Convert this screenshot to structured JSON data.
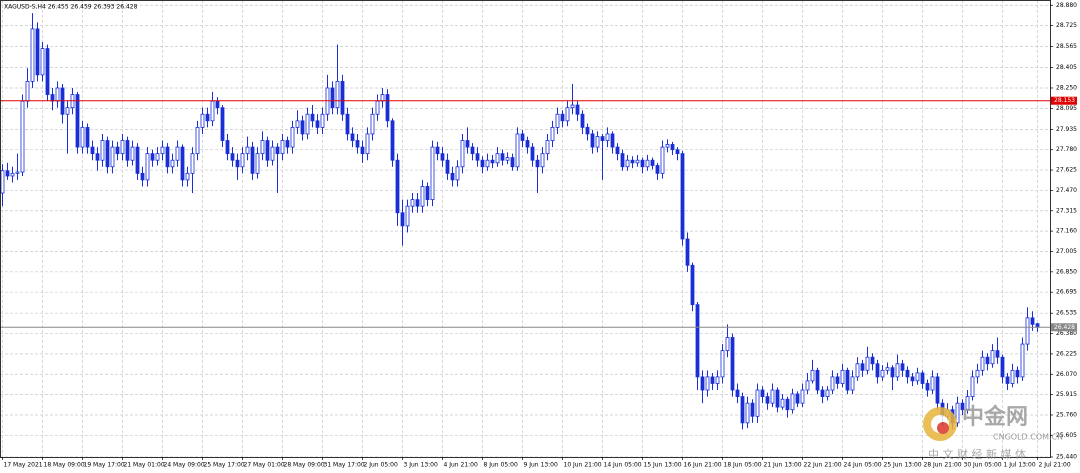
{
  "chart_data": {
    "type": "candlestick",
    "header": "XAGUSD-S,H4 26.455 26.459 26.393 26.428",
    "color": "#1a2fd6",
    "grid": true,
    "ylim": [
      25.44,
      28.92
    ],
    "xlim": [
      -0.5,
      209.5
    ],
    "yticks": [
      {
        "value": 28.88,
        "label": "28.880"
      },
      28.725,
      28.565,
      28.405,
      {
        "value": 28.25,
        "label": "28.250"
      },
      28.095,
      27.935,
      {
        "value": 27.78,
        "label": "27.780"
      },
      27.625,
      {
        "value": 27.47,
        "label": "27.470"
      },
      27.315,
      {
        "value": 27.16,
        "label": "27.160"
      },
      27.005,
      {
        "value": 26.85,
        "label": "26.850"
      },
      26.695,
      26.535,
      {
        "value": 26.38,
        "label": "26.380"
      },
      26.225,
      {
        "value": 26.07,
        "label": "26.070"
      },
      25.915,
      {
        "value": 25.76,
        "label": "25.760"
      },
      25.605,
      {
        "value": 25.44,
        "label": "25.440"
      }
    ],
    "xticks": [
      {
        "value": 0,
        "label": "17 May 2021"
      },
      {
        "value": 8,
        "label": "18 May 09:00"
      },
      {
        "value": 16,
        "label": "19 May 17:00"
      },
      {
        "value": 24,
        "label": "21 May 01:00"
      },
      {
        "value": 32,
        "label": "24 May 09:00"
      },
      {
        "value": 40,
        "label": "25 May 17:00"
      },
      {
        "value": 48,
        "label": "27 May 01:00"
      },
      {
        "value": 56,
        "label": "28 May 09:00"
      },
      {
        "value": 64,
        "label": "31 May 17:00"
      },
      {
        "value": 72,
        "label": "2 Jun 05:00"
      },
      {
        "value": 80,
        "label": "3 Jun 13:00"
      },
      {
        "value": 88,
        "label": "4 Jun 21:00"
      },
      {
        "value": 96,
        "label": "8 Jun 05:00"
      },
      {
        "value": 104,
        "label": "9 Jun 13:00"
      },
      {
        "value": 112,
        "label": "10 Jun 21:00"
      },
      {
        "value": 120,
        "label": "14 Jun 05:00"
      },
      {
        "value": 128,
        "label": "15 Jun 13:00"
      },
      {
        "value": 136,
        "label": "16 Jun 21:00"
      },
      {
        "value": 144,
        "label": "18 Jun 05:00"
      },
      {
        "value": 152,
        "label": "21 Jun 13:00"
      },
      {
        "value": 160,
        "label": "22 Jun 21:00"
      },
      {
        "value": 168,
        "label": "24 Jun 05:00"
      },
      {
        "value": 176,
        "label": "25 Jun 13:00"
      },
      {
        "value": 184,
        "label": "28 Jun 21:00"
      },
      {
        "value": 192,
        "label": "30 Jun 05:00"
      },
      {
        "value": 200,
        "label": "1 Jul 13:00"
      },
      {
        "value": 207,
        "label": "2 Jul 21:00"
      }
    ],
    "hlines": [
      {
        "value": 28.153,
        "color": "#e00000"
      },
      {
        "value": 26.428,
        "color": "#888888"
      }
    ],
    "ohlc": [
      [
        27.45,
        27.67,
        27.35,
        27.62
      ],
      [
        27.62,
        27.68,
        27.55,
        27.58
      ],
      [
        27.58,
        27.65,
        27.53,
        27.6
      ],
      [
        27.6,
        27.75,
        27.55,
        27.61
      ],
      [
        27.61,
        28.2,
        27.58,
        28.15
      ],
      [
        28.15,
        28.4,
        28.1,
        28.3
      ],
      [
        28.3,
        28.82,
        28.25,
        28.7
      ],
      [
        28.7,
        28.75,
        28.3,
        28.35
      ],
      [
        28.35,
        28.6,
        28.3,
        28.55
      ],
      [
        28.55,
        28.58,
        28.15,
        28.2
      ],
      [
        28.2,
        28.25,
        28.08,
        28.15
      ],
      [
        28.15,
        28.3,
        28.1,
        28.25
      ],
      [
        28.25,
        28.28,
        27.98,
        28.05
      ],
      [
        28.05,
        28.15,
        27.75,
        28.1
      ],
      [
        28.1,
        28.25,
        28.05,
        28.2
      ],
      [
        28.2,
        28.22,
        27.75,
        27.8
      ],
      [
        27.8,
        28,
        27.75,
        27.95
      ],
      [
        27.95,
        27.98,
        27.75,
        27.8
      ],
      [
        27.8,
        27.85,
        27.7,
        27.75
      ],
      [
        27.75,
        27.8,
        27.62,
        27.7
      ],
      [
        27.7,
        27.9,
        27.65,
        27.85
      ],
      [
        27.85,
        27.88,
        27.6,
        27.65
      ],
      [
        27.65,
        27.85,
        27.6,
        27.8
      ],
      [
        27.8,
        27.84,
        27.7,
        27.75
      ],
      [
        27.75,
        27.9,
        27.7,
        27.85
      ],
      [
        27.85,
        27.88,
        27.65,
        27.7
      ],
      [
        27.7,
        27.85,
        27.66,
        27.8
      ],
      [
        27.8,
        27.83,
        27.55,
        27.6
      ],
      [
        27.6,
        27.65,
        27.5,
        27.55
      ],
      [
        27.55,
        27.8,
        27.5,
        27.75
      ],
      [
        27.75,
        27.78,
        27.65,
        27.7
      ],
      [
        27.7,
        27.8,
        27.66,
        27.75
      ],
      [
        27.75,
        27.85,
        27.7,
        27.8
      ],
      [
        27.8,
        27.83,
        27.6,
        27.65
      ],
      [
        27.65,
        27.75,
        27.6,
        27.7
      ],
      [
        27.7,
        27.85,
        27.65,
        27.8
      ],
      [
        27.8,
        27.82,
        27.5,
        27.55
      ],
      [
        27.55,
        27.65,
        27.5,
        27.6
      ],
      [
        27.6,
        27.8,
        27.45,
        27.75
      ],
      [
        27.75,
        28,
        27.7,
        27.95
      ],
      [
        27.95,
        28.1,
        27.9,
        28.05
      ],
      [
        28.05,
        28.1,
        27.95,
        28
      ],
      [
        28,
        28.22,
        27.96,
        28.15
      ],
      [
        28.15,
        28.18,
        28.05,
        28.1
      ],
      [
        28.1,
        28.12,
        27.8,
        27.85
      ],
      [
        27.85,
        27.9,
        27.7,
        27.75
      ],
      [
        27.75,
        27.8,
        27.65,
        27.7
      ],
      [
        27.7,
        27.75,
        27.55,
        27.65
      ],
      [
        27.65,
        27.8,
        27.6,
        27.75
      ],
      [
        27.75,
        27.88,
        27.7,
        27.8
      ],
      [
        27.8,
        27.84,
        27.55,
        27.6
      ],
      [
        27.6,
        27.8,
        27.56,
        27.75
      ],
      [
        27.75,
        27.92,
        27.7,
        27.85
      ],
      [
        27.85,
        27.88,
        27.65,
        27.7
      ],
      [
        27.7,
        27.85,
        27.66,
        27.8
      ],
      [
        27.8,
        27.83,
        27.45,
        27.75
      ],
      [
        27.75,
        27.9,
        27.7,
        27.85
      ],
      [
        27.85,
        27.88,
        27.75,
        27.8
      ],
      [
        27.8,
        28,
        27.75,
        27.95
      ],
      [
        27.95,
        28.08,
        27.9,
        28
      ],
      [
        28,
        28.04,
        27.85,
        27.9
      ],
      [
        27.9,
        28.1,
        27.86,
        28.05
      ],
      [
        28.05,
        28.12,
        27.95,
        28
      ],
      [
        28,
        28.05,
        27.9,
        27.95
      ],
      [
        27.95,
        28.1,
        27.9,
        28.05
      ],
      [
        28.05,
        28.35,
        28,
        28.25
      ],
      [
        28.25,
        28.3,
        28.05,
        28.1
      ],
      [
        28.1,
        28.58,
        28.05,
        28.3
      ],
      [
        28.3,
        28.35,
        28,
        28.05
      ],
      [
        28.05,
        28.1,
        27.85,
        27.9
      ],
      [
        27.9,
        27.95,
        27.8,
        27.85
      ],
      [
        27.85,
        27.9,
        27.75,
        27.8
      ],
      [
        27.8,
        27.85,
        27.68,
        27.75
      ],
      [
        27.75,
        27.95,
        27.7,
        27.9
      ],
      [
        27.9,
        28.1,
        27.85,
        28.05
      ],
      [
        28.05,
        28.2,
        28,
        28.15
      ],
      [
        28.15,
        28.25,
        28.1,
        28.2
      ],
      [
        28.2,
        28.24,
        27.95,
        28
      ],
      [
        28,
        28.02,
        27.65,
        27.7
      ],
      [
        27.7,
        27.75,
        27.2,
        27.3
      ],
      [
        27.3,
        27.4,
        27.05,
        27.2
      ],
      [
        27.2,
        27.4,
        27.15,
        27.35
      ],
      [
        27.35,
        27.45,
        27.3,
        27.4
      ],
      [
        27.4,
        27.45,
        27.3,
        27.35
      ],
      [
        27.35,
        27.55,
        27.3,
        27.5
      ],
      [
        27.5,
        27.53,
        27.35,
        27.4
      ],
      [
        27.4,
        27.85,
        27.35,
        27.8
      ],
      [
        27.8,
        27.84,
        27.7,
        27.75
      ],
      [
        27.75,
        27.8,
        27.65,
        27.7
      ],
      [
        27.7,
        27.75,
        27.55,
        27.6
      ],
      [
        27.6,
        27.65,
        27.5,
        27.55
      ],
      [
        27.55,
        27.7,
        27.5,
        27.65
      ],
      [
        27.65,
        27.9,
        27.6,
        27.85
      ],
      [
        27.85,
        27.95,
        27.75,
        27.8
      ],
      [
        27.8,
        27.83,
        27.7,
        27.75
      ],
      [
        27.75,
        27.8,
        27.65,
        27.7
      ],
      [
        27.7,
        27.73,
        27.6,
        27.65
      ],
      [
        27.65,
        27.75,
        27.62,
        27.7
      ],
      [
        27.7,
        27.74,
        27.64,
        27.68
      ],
      [
        27.68,
        27.8,
        27.65,
        27.75
      ],
      [
        27.75,
        27.78,
        27.66,
        27.7
      ],
      [
        27.7,
        27.76,
        27.67,
        27.72
      ],
      [
        27.72,
        27.75,
        27.62,
        27.65
      ],
      [
        27.65,
        27.95,
        27.62,
        27.9
      ],
      [
        27.9,
        27.93,
        27.8,
        27.85
      ],
      [
        27.85,
        27.88,
        27.75,
        27.8
      ],
      [
        27.8,
        27.83,
        27.65,
        27.7
      ],
      [
        27.7,
        27.74,
        27.45,
        27.65
      ],
      [
        27.65,
        27.8,
        27.6,
        27.75
      ],
      [
        27.75,
        27.9,
        27.7,
        27.85
      ],
      [
        27.85,
        28,
        27.8,
        27.95
      ],
      [
        27.95,
        28.1,
        27.9,
        28.05
      ],
      [
        28.05,
        28.08,
        27.95,
        28
      ],
      [
        28,
        28.15,
        27.96,
        28.1
      ],
      [
        28.1,
        28.28,
        28.05,
        28.12
      ],
      [
        28.12,
        28.15,
        28,
        28.05
      ],
      [
        28.05,
        28.08,
        27.9,
        27.95
      ],
      [
        27.95,
        27.98,
        27.85,
        27.9
      ],
      [
        27.9,
        27.93,
        27.75,
        27.8
      ],
      [
        27.8,
        27.92,
        27.76,
        27.88
      ],
      [
        27.88,
        27.9,
        27.55,
        27.85
      ],
      [
        27.85,
        27.95,
        27.8,
        27.9
      ],
      [
        27.9,
        27.92,
        27.75,
        27.8
      ],
      [
        27.8,
        27.83,
        27.7,
        27.75
      ],
      [
        27.75,
        27.78,
        27.62,
        27.65
      ],
      [
        27.65,
        27.74,
        27.62,
        27.7
      ],
      [
        27.7,
        27.73,
        27.64,
        27.68
      ],
      [
        27.68,
        27.74,
        27.65,
        27.7
      ],
      [
        27.7,
        27.72,
        27.6,
        27.65
      ],
      [
        27.65,
        27.74,
        27.62,
        27.7
      ],
      [
        27.7,
        27.72,
        27.63,
        27.66
      ],
      [
        27.66,
        27.68,
        27.55,
        27.6
      ],
      [
        27.6,
        27.85,
        27.56,
        27.8
      ],
      [
        27.8,
        27.86,
        27.76,
        27.82
      ],
      [
        27.82,
        27.84,
        27.74,
        27.78
      ],
      [
        27.78,
        27.8,
        27.7,
        27.75
      ],
      [
        27.75,
        27.77,
        27.05,
        27.1
      ],
      [
        27.1,
        27.15,
        26.85,
        26.9
      ],
      [
        26.9,
        26.92,
        26.55,
        26.6
      ],
      [
        26.6,
        26.62,
        25.95,
        26.05
      ],
      [
        26.05,
        26.1,
        25.85,
        25.95
      ],
      [
        25.95,
        26.1,
        25.9,
        26.05
      ],
      [
        26.05,
        26.08,
        25.95,
        26
      ],
      [
        26,
        26.1,
        25.95,
        26.05
      ],
      [
        26.05,
        26.3,
        26,
        26.25
      ],
      [
        26.25,
        26.45,
        26.2,
        26.35
      ],
      [
        26.35,
        26.38,
        25.9,
        25.95
      ],
      [
        25.95,
        26,
        25.85,
        25.9
      ],
      [
        25.9,
        25.93,
        25.65,
        25.7
      ],
      [
        25.7,
        25.9,
        25.66,
        25.85
      ],
      [
        25.85,
        25.88,
        25.7,
        25.75
      ],
      [
        25.75,
        26,
        25.7,
        25.95
      ],
      [
        25.95,
        25.98,
        25.85,
        25.9
      ],
      [
        25.9,
        25.93,
        25.8,
        25.85
      ],
      [
        25.85,
        26,
        25.82,
        25.95
      ],
      [
        25.95,
        25.97,
        25.78,
        25.82
      ],
      [
        25.82,
        25.92,
        25.8,
        25.88
      ],
      [
        25.88,
        25.9,
        25.74,
        25.8
      ],
      [
        25.8,
        25.96,
        25.77,
        25.92
      ],
      [
        25.92,
        25.94,
        25.82,
        25.85
      ],
      [
        25.85,
        26,
        25.82,
        25.95
      ],
      [
        25.95,
        26.08,
        25.92,
        26.02
      ],
      [
        26.02,
        26.18,
        26,
        26.1
      ],
      [
        26.1,
        26.12,
        25.92,
        25.95
      ],
      [
        25.95,
        25.98,
        25.85,
        25.9
      ],
      [
        25.9,
        25.98,
        25.87,
        25.95
      ],
      [
        25.95,
        26.1,
        25.92,
        26.05
      ],
      [
        26.05,
        26.08,
        25.96,
        26
      ],
      [
        26,
        26.15,
        25.97,
        26.1
      ],
      [
        26.1,
        26.12,
        25.92,
        25.95
      ],
      [
        25.95,
        26.1,
        25.92,
        26.05
      ],
      [
        26.05,
        26.2,
        26.02,
        26.15
      ],
      [
        26.15,
        26.18,
        26.05,
        26.1
      ],
      [
        26.1,
        26.28,
        26.07,
        26.2
      ],
      [
        26.2,
        26.23,
        26.1,
        26.15
      ],
      [
        26.15,
        26.18,
        26,
        26.05
      ],
      [
        26.05,
        26.14,
        26.02,
        26.1
      ],
      [
        26.1,
        26.16,
        26.07,
        26.12
      ],
      [
        26.12,
        26.14,
        25.95,
        26.05
      ],
      [
        26.05,
        26.22,
        26.02,
        26.15
      ],
      [
        26.15,
        26.18,
        26.05,
        26.1
      ],
      [
        26.1,
        26.13,
        26,
        26.05
      ],
      [
        26.05,
        26.08,
        25.98,
        26.02
      ],
      [
        26.02,
        26.12,
        25.99,
        26.08
      ],
      [
        26.08,
        26.1,
        25.96,
        26
      ],
      [
        26,
        26.03,
        25.9,
        25.95
      ],
      [
        25.95,
        26.1,
        25.92,
        26.05
      ],
      [
        26.05,
        26.08,
        25.8,
        25.85
      ],
      [
        25.85,
        25.88,
        25.68,
        25.75
      ],
      [
        25.75,
        25.85,
        25.72,
        25.8
      ],
      [
        25.8,
        25.83,
        25.65,
        25.7
      ],
      [
        25.7,
        25.9,
        25.67,
        25.85
      ],
      [
        25.85,
        25.88,
        25.76,
        25.8
      ],
      [
        25.8,
        25.95,
        25.77,
        25.9
      ],
      [
        25.9,
        26.1,
        25.87,
        26.05
      ],
      [
        26.05,
        26.15,
        26,
        26.1
      ],
      [
        26.1,
        26.25,
        26.06,
        26.2
      ],
      [
        26.2,
        26.23,
        26.1,
        26.15
      ],
      [
        26.15,
        26.3,
        26.12,
        26.25
      ],
      [
        26.25,
        26.35,
        26.15,
        26.2
      ],
      [
        26.2,
        26.22,
        26,
        26.05
      ],
      [
        26.05,
        26.08,
        25.95,
        26
      ],
      [
        26,
        26.15,
        25.97,
        26.1
      ],
      [
        26.1,
        26.13,
        26,
        26.05
      ],
      [
        26.05,
        26.35,
        26.02,
        26.3
      ],
      [
        26.3,
        26.58,
        26.25,
        26.5
      ],
      [
        26.5,
        26.55,
        26.4,
        26.45
      ],
      [
        26.455,
        26.459,
        26.393,
        26.428
      ]
    ],
    "watermark": {
      "brand": "中金网",
      "site": "CNGOLD.COM.CN",
      "slogan": "中 文 财 经 新 媒 体"
    }
  }
}
